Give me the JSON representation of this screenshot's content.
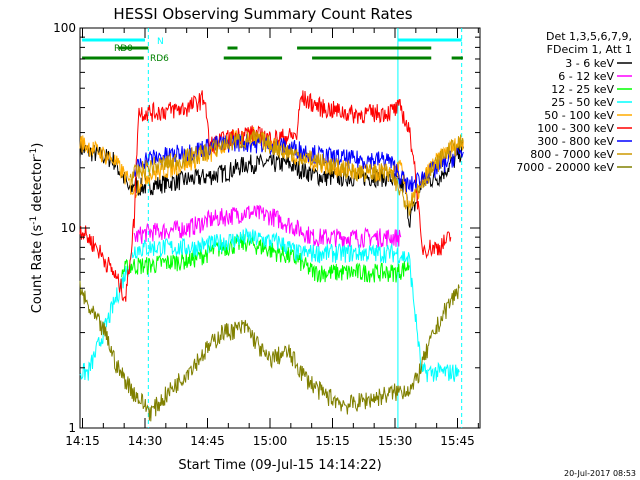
{
  "chart_data": {
    "type": "line",
    "title": "HESSI Observing Summary Count Rates",
    "xlabel": "Start Time (09-Jul-15 14:14:22)",
    "ylabel_main": "Count Rate (s",
    "ylabel_sup1": "-1",
    "ylabel_mid": " detector",
    "ylabel_sup2": "-1",
    "ylabel_end": ")",
    "y_scale": "log",
    "ylim": [
      1,
      100
    ],
    "xlim_minutes": [
      0,
      96
    ],
    "y_ticks": [
      "1",
      "10",
      "100"
    ],
    "x_ticks": [
      {
        "label": "14:15",
        "minutes": 0.6
      },
      {
        "label": "14:30",
        "minutes": 15.6
      },
      {
        "label": "14:45",
        "minutes": 30.6
      },
      {
        "label": "15:00",
        "minutes": 45.6
      },
      {
        "label": "15:15",
        "minutes": 60.6
      },
      {
        "label": "15:30",
        "minutes": 75.6
      },
      {
        "label": "15:45",
        "minutes": 90.6
      }
    ],
    "legend_header": [
      "Det 1,3,5,6,7,9,",
      "FDecim 1, Att 1"
    ],
    "legend_position": "right",
    "series": [
      {
        "name": "3 - 6 keV",
        "color": "#000000",
        "points": [
          [
            0,
            25
          ],
          [
            8,
            22
          ],
          [
            11,
            17
          ],
          [
            12,
            15
          ],
          [
            13,
            17
          ],
          [
            14,
            16
          ],
          [
            22,
            17
          ],
          [
            30,
            18
          ],
          [
            35,
            19
          ],
          [
            40,
            21
          ],
          [
            45,
            21
          ],
          [
            50,
            21
          ],
          [
            52,
            20
          ],
          [
            58,
            18
          ],
          [
            66,
            18
          ],
          [
            70,
            18
          ],
          [
            74,
            18
          ],
          [
            78,
            16
          ],
          [
            79,
            11
          ],
          [
            81,
            14
          ],
          [
            82,
            17
          ],
          [
            86,
            18
          ],
          [
            90,
            22
          ],
          [
            92,
            25
          ]
        ]
      },
      {
        "name": "6 - 12 keV",
        "color": "#ff00ff",
        "points": [
          [
            13,
            9
          ],
          [
            16,
            9.5
          ],
          [
            26,
            10
          ],
          [
            31,
            11
          ],
          [
            40,
            12
          ],
          [
            46,
            11.5
          ],
          [
            52,
            10
          ],
          [
            56,
            9
          ],
          [
            64,
            9
          ],
          [
            74,
            9
          ],
          [
            77,
            9
          ]
        ]
      },
      {
        "name": "12 - 25 keV",
        "color": "#00ff00",
        "points": [
          [
            10,
            6
          ],
          [
            12,
            6.5
          ],
          [
            16,
            6.5
          ],
          [
            27,
            7
          ],
          [
            34,
            8
          ],
          [
            40,
            8.5
          ],
          [
            48,
            7.5
          ],
          [
            52,
            7
          ],
          [
            56,
            6
          ],
          [
            66,
            6
          ],
          [
            76,
            6
          ],
          [
            79,
            6.5
          ]
        ]
      },
      {
        "name": "25 - 50 keV",
        "color": "#00ffff",
        "points": [
          [
            0,
            1.9
          ],
          [
            2,
            1.9
          ],
          [
            13,
            7.8
          ],
          [
            16,
            8
          ],
          [
            27,
            8
          ],
          [
            34,
            8.5
          ],
          [
            40,
            9
          ],
          [
            48,
            8.5
          ],
          [
            52,
            7.5
          ],
          [
            56,
            7.5
          ],
          [
            66,
            7.5
          ],
          [
            76,
            7.5
          ],
          [
            79,
            7
          ],
          [
            82,
            1.9
          ],
          [
            91,
            1.9
          ]
        ]
      },
      {
        "name": "50 - 100 keV",
        "color": "#ffaa00",
        "points": [
          [
            0,
            27
          ],
          [
            8,
            22
          ],
          [
            11,
            18
          ],
          [
            13,
            15
          ],
          [
            15,
            18
          ],
          [
            25,
            21
          ],
          [
            32,
            24
          ],
          [
            37,
            28
          ],
          [
            42,
            29
          ],
          [
            46,
            27
          ],
          [
            52,
            23
          ],
          [
            58,
            21
          ],
          [
            66,
            19
          ],
          [
            74,
            19
          ],
          [
            77,
            20
          ],
          [
            79,
            13
          ],
          [
            81,
            15
          ],
          [
            84,
            20
          ],
          [
            89,
            25
          ],
          [
            92,
            27
          ]
        ]
      },
      {
        "name": "100 - 300 keV",
        "color": "#ff0000",
        "points": [
          [
            0,
            10
          ],
          [
            4,
            8
          ],
          [
            8,
            6
          ],
          [
            11,
            4.5
          ],
          [
            13,
            11
          ],
          [
            14,
            38
          ],
          [
            18,
            38
          ],
          [
            26,
            40
          ],
          [
            30,
            45
          ],
          [
            31,
            26
          ],
          [
            40,
            30
          ],
          [
            46,
            28
          ],
          [
            52,
            29
          ],
          [
            53,
            45
          ],
          [
            58,
            40
          ],
          [
            66,
            37
          ],
          [
            74,
            38
          ],
          [
            77,
            40
          ],
          [
            79,
            30
          ],
          [
            80,
            24
          ],
          [
            82,
            8
          ],
          [
            86,
            8
          ],
          [
            89,
            9
          ]
        ]
      },
      {
        "name": "300 - 800 keV",
        "color": "#0000ff",
        "points": [
          [
            13,
            19
          ],
          [
            15,
            22
          ],
          [
            26,
            24
          ],
          [
            32,
            26
          ],
          [
            38,
            27
          ],
          [
            46,
            26
          ],
          [
            52,
            25
          ],
          [
            58,
            23
          ],
          [
            66,
            22
          ],
          [
            74,
            22
          ],
          [
            79,
            16
          ],
          [
            82,
            18
          ],
          [
            86,
            20
          ],
          [
            90,
            23
          ],
          [
            92,
            24
          ]
        ]
      },
      {
        "name": "800 - 7000 keV",
        "color": "#cc9900",
        "points": [
          [
            12,
            18
          ],
          [
            16,
            20
          ],
          [
            24,
            22
          ],
          [
            30,
            24
          ],
          [
            36,
            27
          ],
          [
            42,
            28
          ],
          [
            46,
            26
          ],
          [
            50,
            24
          ],
          [
            56,
            22
          ],
          [
            62,
            20
          ],
          [
            68,
            19
          ],
          [
            74,
            19
          ],
          [
            79,
            13
          ],
          [
            82,
            17
          ],
          [
            88,
            24
          ],
          [
            92,
            27
          ]
        ]
      },
      {
        "name": "7000 - 20000 keV",
        "color": "#808000",
        "points": [
          [
            0,
            5
          ],
          [
            2,
            4
          ],
          [
            6,
            3
          ],
          [
            9,
            2
          ],
          [
            13,
            1.5
          ],
          [
            17,
            1.2
          ],
          [
            34,
            3
          ],
          [
            40,
            3.2
          ],
          [
            45,
            2.2
          ],
          [
            50,
            2.4
          ],
          [
            54,
            1.8
          ],
          [
            58,
            1.5
          ],
          [
            64,
            1.3
          ],
          [
            80,
            1.6
          ],
          [
            85,
            3
          ],
          [
            88,
            4
          ],
          [
            91,
            5
          ]
        ]
      }
    ],
    "vertical_lines": [
      {
        "minutes": 16.4,
        "style": "dashed",
        "color": "#00ffff"
      },
      {
        "minutes": 76.3,
        "style": "solid",
        "color": "#00ffff"
      },
      {
        "minutes": 91.6,
        "style": "dashed",
        "color": "#00ffff"
      }
    ],
    "flag_bars": [
      {
        "name": "N",
        "color": "#00ffff",
        "segments": [
          [
            0.5,
            15.6
          ],
          [
            76.3,
            91.6
          ]
        ]
      },
      {
        "name": "RD0",
        "color": "#008000",
        "segments": [
          [
            9.3,
            16.4
          ],
          [
            35.4,
            37.8
          ],
          [
            52.1,
            84.3
          ]
        ]
      },
      {
        "name": "RD6",
        "color": "#008000",
        "segments": [
          [
            0.5,
            15.3
          ],
          [
            34.5,
            48.5
          ],
          [
            55.7,
            84.3
          ],
          [
            89.2,
            91.9
          ]
        ]
      }
    ],
    "flag_labels": {
      "N": "N",
      "RD0": "RD0",
      "RD6": "RD6"
    }
  },
  "timestamp": "20-Jul-2017 08:53"
}
